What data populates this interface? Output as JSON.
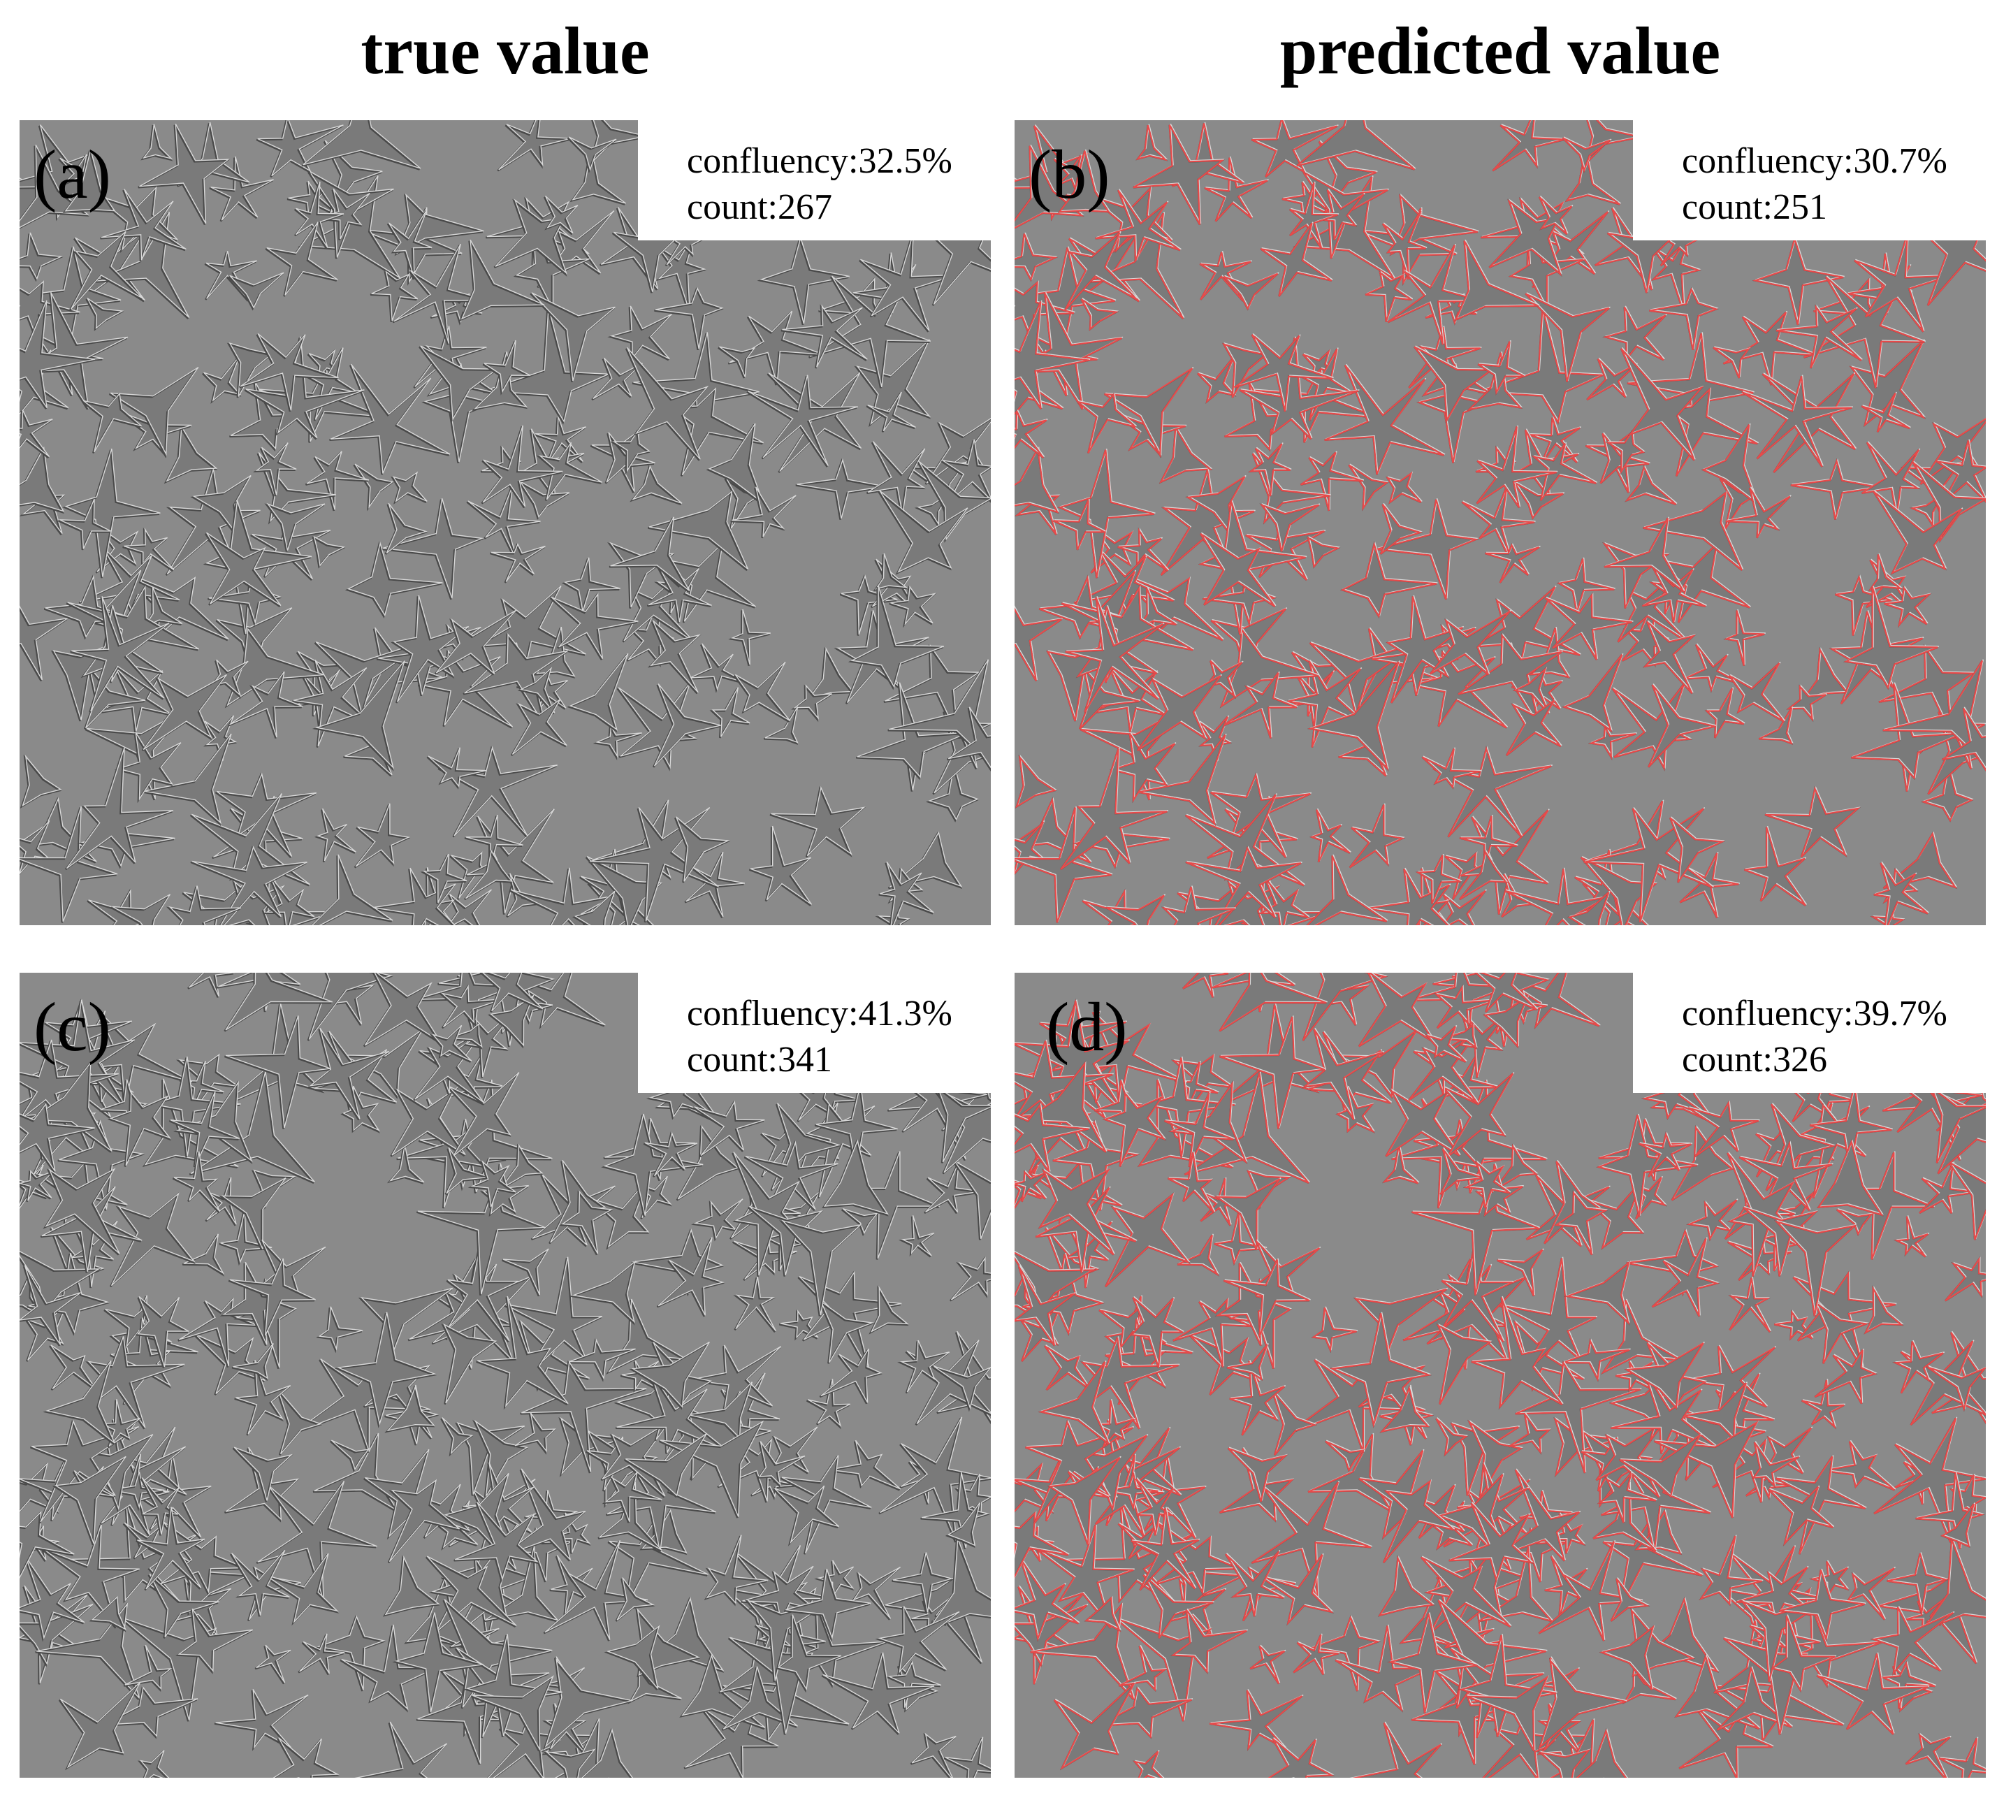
{
  "titles": {
    "left": "true value",
    "right": "predicted value"
  },
  "panels": [
    {
      "label": "(a)",
      "confluency": "confluency:32.5%",
      "count": "count:267",
      "outlines": false
    },
    {
      "label": "(b)",
      "confluency": "confluency:30.7%",
      "count": "count:251",
      "outlines": true
    },
    {
      "label": "(c)",
      "confluency": "confluency:41.3%",
      "count": "count:341",
      "outlines": false
    },
    {
      "label": "(d)",
      "confluency": "confluency:39.7%",
      "count": "count:326",
      "outlines": true
    }
  ],
  "colors": {
    "background": "#8a8a8a",
    "cell_body": "#7a7a7a",
    "cell_edge_light": "#d8d8d8",
    "cell_edge_dark": "#4a4a4a",
    "prediction_outline": "#e84a4a"
  }
}
